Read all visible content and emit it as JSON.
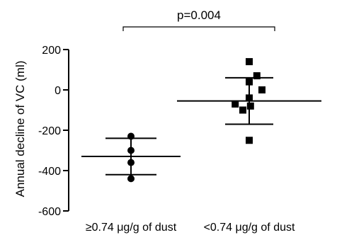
{
  "chart_data": {
    "type": "scatter",
    "title": "",
    "xlabel": "",
    "ylabel": "Annual decline of VC (ml)",
    "ylim": [
      -600,
      200
    ],
    "yticks": [
      200,
      0,
      -200,
      -400,
      -600
    ],
    "grid": false,
    "legend": "none",
    "annotation": {
      "text": "p=0.004",
      "spans": [
        "≥0.74 μg/g of dust",
        "<0.74 μg/g of dust"
      ]
    },
    "categories": [
      "≥0.74 μg/g of dust",
      "<0.74 μg/g of dust"
    ],
    "groups": [
      {
        "category": "≥0.74 μg/g of dust",
        "marker": "circle",
        "points": [
          -230,
          -300,
          -360,
          -440
        ],
        "center": -330,
        "error_upper": -240,
        "error_lower": -420
      },
      {
        "category": "<0.74 μg/g of dust",
        "marker": "square",
        "points": [
          140,
          70,
          40,
          0,
          -40,
          -70,
          -80,
          -100,
          -250
        ],
        "offsets": [
          0,
          0.12,
          0,
          0.2,
          0,
          -0.22,
          0.02,
          -0.1,
          0
        ],
        "center": -55,
        "error_upper": 60,
        "error_lower": -170
      }
    ]
  }
}
